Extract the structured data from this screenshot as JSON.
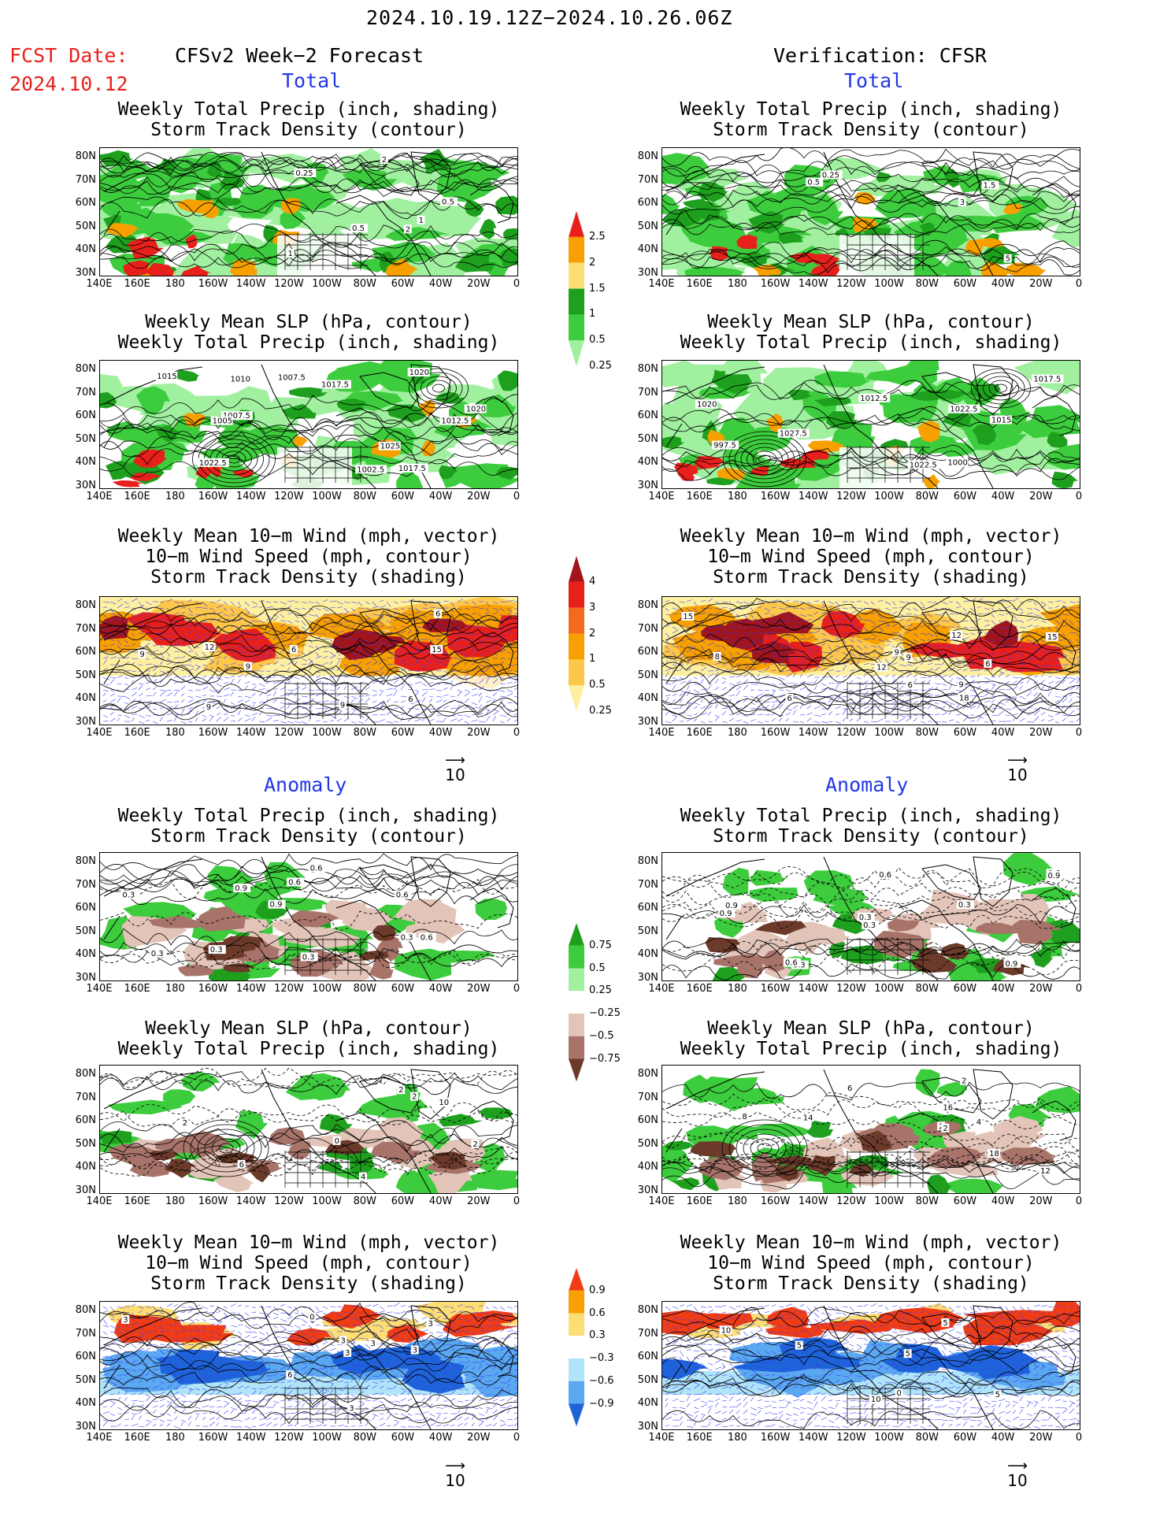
{
  "header": {
    "date_range": "2024.10.19.12Z−2024.10.26.06Z",
    "fcst_date_label": "FCST Date:",
    "fcst_date_value": "2024.10.12",
    "left_title": "CFSv2 Week−2 Forecast",
    "right_title": "Verification: CFSR",
    "total_label": "Total",
    "anomaly_label": "Anomaly"
  },
  "panel_titles": {
    "precip_storm": [
      "Weekly Total Precip (inch, shading)",
      "Storm Track Density (contour)"
    ],
    "slp_precip": [
      "Weekly Mean SLP (hPa, contour)",
      "Weekly Total Precip (inch, shading)"
    ],
    "wind_storm": [
      "Weekly Mean 10−m Wind (mph, vector)",
      "10−m Wind Speed (mph, contour)",
      "Storm Track Density (shading)"
    ]
  },
  "axes": {
    "lat_labels": [
      "80N",
      "70N",
      "60N",
      "50N",
      "40N",
      "30N"
    ],
    "lon_labels": [
      "140E",
      "160E",
      "180",
      "160W",
      "140W",
      "120W",
      "100W",
      "80W",
      "60W",
      "40W",
      "20W",
      "0"
    ]
  },
  "vector_ref": "10",
  "colorbars": {
    "total_precip": {
      "labels": [
        "2.5",
        "2",
        "1.5",
        "1",
        "0.5",
        "0.25"
      ],
      "colors": [
        "#e8201c",
        "#f7a000",
        "#fdde74",
        "#1ea01e",
        "#3dcc3d",
        "#a0f0a0"
      ]
    },
    "total_storm": {
      "labels": [
        "4",
        "3",
        "2",
        "1",
        "0.5",
        "0.25"
      ],
      "colors": [
        "#a0141a",
        "#e8201c",
        "#f26a1e",
        "#f7a000",
        "#fdc84a",
        "#fef0a0"
      ]
    },
    "anom_precip": {
      "labels": [
        "0.75",
        "0.5",
        "0.25",
        "−0.25",
        "−0.5",
        "−0.75"
      ],
      "colors": [
        "#1ea01e",
        "#3dcc3d",
        "#a0f0a0",
        "#ffffff",
        "#e2c4b8",
        "#a8746a",
        "#6b3a2a"
      ]
    },
    "anom_storm": {
      "labels": [
        "0.9",
        "0.6",
        "0.3",
        "−0.3",
        "−0.6",
        "−0.9"
      ],
      "colors": [
        "#f03c14",
        "#f7a000",
        "#fdde74",
        "#ffffff",
        "#b0e4f8",
        "#5aa8f0",
        "#1e64d8"
      ]
    }
  },
  "map_colors": {
    "green_dark": "#1ea01e",
    "green_mid": "#3dcc3d",
    "green_light": "#a0f0a0",
    "brown_dark": "#6b3a2a",
    "brown_mid": "#a8746a",
    "brown_light": "#e2c4b8",
    "red": "#e8201c",
    "orange": "#f7a000",
    "dark_red": "#a0141a",
    "blue_dark": "#1e64d8",
    "blue_mid": "#5aa8f0",
    "blue_light": "#b0e4f8",
    "vector_blue": "#3a3aff"
  },
  "contour_labels": {
    "fc_precip": [
      "1",
      "0.5",
      "2",
      "1",
      "0.5",
      "0.25",
      "2"
    ],
    "vf_precip": [
      "0.25",
      "3",
      "0.5",
      "5",
      "1.5"
    ],
    "fc_slp": [
      "1007.5",
      "1010",
      "1012.5",
      "1017.5",
      "1015",
      "1005",
      "1002.5",
      "1007.5",
      "1025",
      "1022.5",
      "1020",
      "1020",
      "1017.5"
    ],
    "vf_slp": [
      "1000",
      "1022.5",
      "1012.5",
      "997.5",
      "1015",
      "1017.5",
      "1022.5",
      "1027.5",
      "1020"
    ],
    "fc_wind": [
      "6",
      "6",
      "9",
      "9",
      "15",
      "9",
      "12",
      "9",
      "6"
    ],
    "vf_wind": [
      "9",
      "6",
      "9",
      "6",
      "8",
      "12",
      "15",
      "18",
      "15",
      "12",
      "6",
      "9"
    ],
    "fc_aprecip": [
      "0.3",
      "0.6",
      "0.9",
      "0.3",
      "0.6",
      "0.3",
      "0.3",
      "0.9",
      "0.6",
      "0.6",
      "0.3"
    ],
    "vf_aprecip": [
      "0.3",
      "0.9",
      "0.6",
      "0.3",
      "0.9",
      "0.6",
      "0.3",
      "0.9",
      "0.3",
      "0.6",
      "0.9"
    ],
    "fc_aslp": [
      "2",
      "6",
      "10",
      "2",
      "2",
      "4",
      "0",
      "2"
    ],
    "vf_aslp": [
      "18",
      "16",
      "8",
      "14",
      "12",
      "2",
      "2",
      "6",
      "4",
      "2"
    ],
    "fc_awind": [
      "0",
      "3",
      "3",
      "3",
      "6",
      "3",
      "3",
      "3",
      "3"
    ],
    "vf_awind": [
      "5",
      "5",
      "5",
      "10",
      "0",
      "5",
      "10"
    ]
  }
}
